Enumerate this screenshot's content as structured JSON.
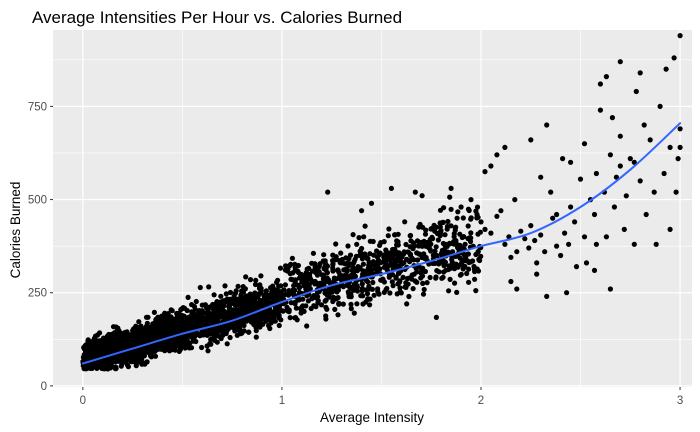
{
  "chart_data": {
    "type": "scatter",
    "title": "Average Intensities Per Hour vs. Calories Burned",
    "xlabel": "Average Intensity",
    "ylabel": "Calories Burned",
    "xlim": [
      -0.15,
      3.06
    ],
    "ylim": [
      -3,
      955
    ],
    "x_ticks": [
      0,
      1,
      2,
      3
    ],
    "x_tick_labels": [
      "0",
      "1",
      "2",
      "3"
    ],
    "y_ticks": [
      0,
      250,
      500,
      750
    ],
    "y_tick_labels": [
      "0",
      "250",
      "500",
      "750"
    ],
    "grid": true,
    "legend": "none",
    "colors": {
      "panel_background": "#ebebeb",
      "grid_major": "#ffffff",
      "points": "#000000",
      "smooth_line": "#3366ff",
      "tick_label": "#4d4d4d"
    },
    "point_generation": {
      "random_seed": 20240517,
      "dense_cloud": [
        {
          "count": 1400,
          "x_range": [
            0.0,
            0.5
          ],
          "intercept": 68,
          "slope": 170,
          "noise_sd": 22
        },
        {
          "count": 700,
          "x_range": [
            0.5,
            1.0
          ],
          "intercept": 80,
          "slope": 150,
          "noise_sd": 30
        },
        {
          "count": 500,
          "x_range": [
            1.0,
            1.6
          ],
          "intercept": 120,
          "slope": 130,
          "noise_sd": 40
        },
        {
          "count": 260,
          "x_range": [
            1.6,
            2.0
          ],
          "intercept": 110,
          "slope": 135,
          "noise_sd": 55
        }
      ]
    },
    "series": [
      {
        "kind": "scattered_points",
        "points": [
          [
            2.0,
            440
          ],
          [
            2.02,
            420
          ],
          [
            2.05,
            410
          ],
          [
            2.08,
            455
          ],
          [
            2.1,
            470
          ],
          [
            2.12,
            380
          ],
          [
            2.14,
            400
          ],
          [
            2.15,
            345
          ],
          [
            2.17,
            500
          ],
          [
            2.18,
            360
          ],
          [
            2.2,
            415
          ],
          [
            2.22,
            395
          ],
          [
            2.24,
            370
          ],
          [
            2.25,
            430
          ],
          [
            2.27,
            390
          ],
          [
            2.28,
            330
          ],
          [
            2.3,
            405
          ],
          [
            2.32,
            360
          ],
          [
            2.33,
            700
          ],
          [
            2.35,
            520
          ],
          [
            2.36,
            450
          ],
          [
            2.38,
            375
          ],
          [
            2.4,
            350
          ],
          [
            2.42,
            410
          ],
          [
            2.44,
            380
          ],
          [
            2.45,
            480
          ],
          [
            2.47,
            440
          ],
          [
            2.48,
            320
          ],
          [
            2.5,
            555
          ],
          [
            2.52,
            400
          ],
          [
            2.53,
            330
          ],
          [
            2.55,
            500
          ],
          [
            2.57,
            460
          ],
          [
            2.58,
            380
          ],
          [
            2.6,
            740
          ],
          [
            2.62,
            520
          ],
          [
            2.63,
            400
          ],
          [
            2.65,
            620
          ],
          [
            2.67,
            480
          ],
          [
            2.68,
            560
          ],
          [
            2.7,
            590
          ],
          [
            2.72,
            420
          ],
          [
            2.73,
            510
          ],
          [
            2.75,
            610
          ],
          [
            2.77,
            380
          ],
          [
            2.78,
            790
          ],
          [
            2.8,
            550
          ],
          [
            2.82,
            700
          ],
          [
            2.83,
            460
          ],
          [
            2.85,
            660
          ],
          [
            2.87,
            520
          ],
          [
            2.88,
            380
          ],
          [
            2.9,
            750
          ],
          [
            2.92,
            570
          ],
          [
            2.93,
            850
          ],
          [
            2.95,
            640
          ],
          [
            2.97,
            880
          ],
          [
            2.98,
            520
          ],
          [
            2.99,
            610
          ],
          [
            3.0,
            940
          ],
          [
            3.0,
            640
          ],
          [
            3.0,
            690
          ],
          [
            2.95,
            420
          ],
          [
            2.6,
            810
          ],
          [
            2.63,
            830
          ],
          [
            2.66,
            720
          ],
          [
            2.7,
            870
          ],
          [
            2.8,
            840
          ],
          [
            2.41,
            610
          ],
          [
            2.38,
            460
          ],
          [
            2.28,
            300
          ],
          [
            2.33,
            240
          ],
          [
            2.43,
            250
          ],
          [
            2.57,
            310
          ],
          [
            2.65,
            260
          ],
          [
            2.15,
            280
          ],
          [
            2.18,
            260
          ],
          [
            1.9,
            480
          ],
          [
            1.95,
            500
          ],
          [
            1.98,
            460
          ],
          [
            1.88,
            450
          ],
          [
            1.85,
            530
          ],
          [
            1.92,
            380
          ],
          [
            1.99,
            340
          ],
          [
            1.55,
            530
          ],
          [
            1.67,
            520
          ],
          [
            1.23,
            520
          ],
          [
            1.4,
            470
          ],
          [
            1.45,
            490
          ],
          [
            2.08,
            620
          ],
          [
            2.12,
            640
          ],
          [
            2.25,
            660
          ],
          [
            2.45,
            600
          ],
          [
            2.52,
            650
          ],
          [
            2.58,
            570
          ],
          [
            2.7,
            670
          ],
          [
            2.77,
            600
          ],
          [
            2.3,
            560
          ],
          [
            2.02,
            575
          ],
          [
            2.05,
            590
          ]
        ]
      }
    ],
    "smooth_curve": {
      "x": [
        0.0,
        0.25,
        0.5,
        0.75,
        1.0,
        1.25,
        1.5,
        1.75,
        2.0,
        2.25,
        2.5,
        2.75,
        3.0
      ],
      "y": [
        60,
        100,
        140,
        175,
        225,
        270,
        300,
        335,
        375,
        410,
        480,
        580,
        705
      ]
    }
  }
}
